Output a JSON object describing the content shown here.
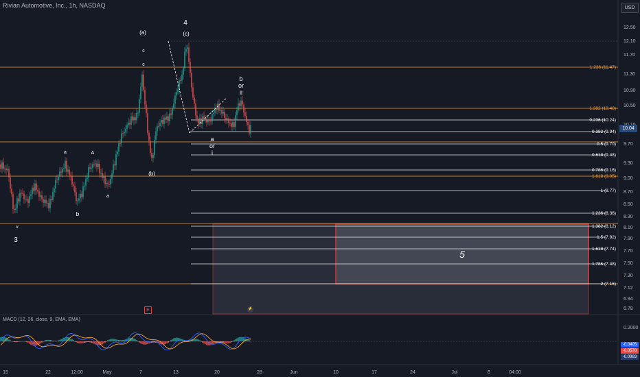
{
  "chart_title": "Rivian Automotive, Inc., 1h, NASDAQ",
  "currency_button": "USD",
  "last_price": "10.04",
  "price_axis": [
    "12.50",
    "12.10",
    "11.70",
    "11.30",
    "10.90",
    "10.50",
    "10.10",
    "9.70",
    "9.30",
    "9.00",
    "8.70",
    "8.50",
    "8.30",
    "8.10",
    "7.90",
    "7.70",
    "7.50",
    "7.30",
    "7.12",
    "6.94",
    "6.78"
  ],
  "time_axis": [
    "15",
    "22",
    "12:00",
    "May",
    "7",
    "13",
    "20",
    "28",
    "Jun",
    "10",
    "17",
    "24",
    "Jul",
    "8",
    "04:00"
  ],
  "fib_levels": [
    {
      "label": "0.236 (10.24)",
      "color": "white"
    },
    {
      "label": "0.382 (9.94)",
      "color": "white"
    },
    {
      "label": "0.5 (9.70)",
      "color": "white"
    },
    {
      "label": "0.618 (9.48)",
      "color": "white"
    },
    {
      "label": "0.786 (9.16)",
      "color": "white"
    },
    {
      "label": "1 (8.77)",
      "color": "white"
    },
    {
      "label": "1.236 (8.36)",
      "color": "white"
    },
    {
      "label": "1.382 (8.12)",
      "color": "white"
    },
    {
      "label": "1.5 (7.92)",
      "color": "white"
    },
    {
      "label": "1.618 (7.74)",
      "color": "white"
    },
    {
      "label": "1.786 (7.48)",
      "color": "white"
    },
    {
      "label": "2 (7.16)",
      "color": "white"
    }
  ],
  "ext_levels": [
    {
      "label": "1.236 (11.47)"
    },
    {
      "label": "1.382 (10.48)"
    },
    {
      "label": "1.618 (9.05)"
    }
  ],
  "wave_labels": {
    "w4": "4",
    "wa_big": "(a)",
    "wc_big": "(c)",
    "c1": "c",
    "c2": "c",
    "b_or_ii": [
      "b",
      "or",
      "ii"
    ],
    "a_or_i": [
      "a",
      "or",
      "i"
    ],
    "wb_paren": "(b)",
    "a_left": "a",
    "A_left": "A",
    "a_low": "a",
    "b_low": "b",
    "v_low": "v",
    "w3": "3",
    "w5": "5"
  },
  "event_e": "E",
  "event_bolt": "⚡",
  "macd": {
    "title": "MACD (12, 26, close, 9, EMA, EMA)",
    "axis_top": "0.2000",
    "values": [
      "-0.0405",
      "-0.0578",
      "-0.0983"
    ],
    "colors": [
      "#2962ff",
      "#e84a4a",
      "#2a3a6a"
    ]
  }
}
